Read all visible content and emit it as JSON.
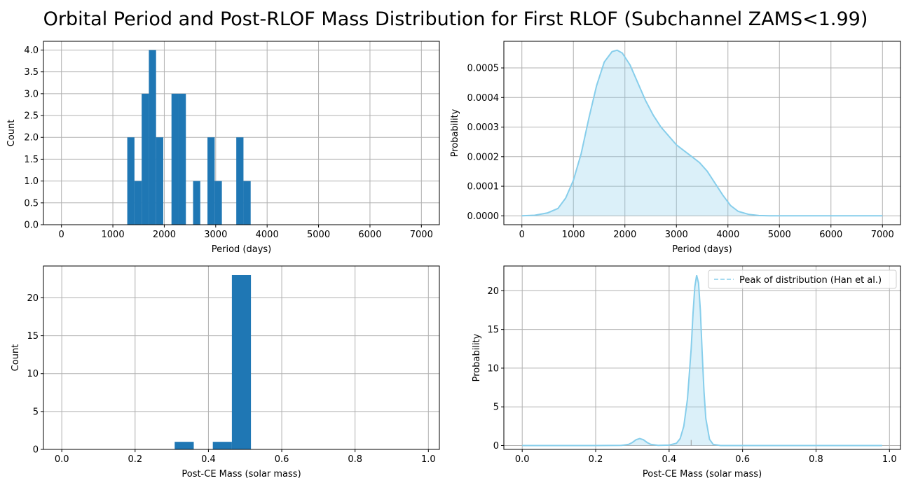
{
  "figure": {
    "title": "Orbital Period and Post-RLOF Mass Distribution for First RLOF (Subchannel ZAMS<1.99)"
  },
  "colors": {
    "bar": "#1f77b4",
    "kde_line": "#87ceeb",
    "kde_fill": "#87ceeb",
    "grid": "#b0b0b0"
  },
  "chart_data": [
    {
      "type": "bar",
      "panel": "top-left",
      "xlabel": "Period (days)",
      "ylabel": "Count",
      "xlim": [
        -350,
        7350
      ],
      "ylim": [
        0,
        4.2
      ],
      "grid": true,
      "xticks": [
        0,
        1000,
        2000,
        3000,
        4000,
        5000,
        6000,
        7000
      ],
      "xtick_labels": [
        "0",
        "1000",
        "2000",
        "3000",
        "4000",
        "5000",
        "6000",
        "7000"
      ],
      "yticks": [
        0,
        0.5,
        1,
        1.5,
        2,
        2.5,
        3,
        3.5,
        4
      ],
      "ytick_labels": [
        "0.0",
        "0.5",
        "1.0",
        "1.5",
        "2.0",
        "2.5",
        "3.0",
        "3.5",
        "4.0"
      ],
      "bins": [
        {
          "x0": 1280,
          "x1": 1420,
          "value": 2
        },
        {
          "x0": 1420,
          "x1": 1560,
          "value": 1
        },
        {
          "x0": 1560,
          "x1": 1700,
          "value": 3
        },
        {
          "x0": 1700,
          "x1": 1840,
          "value": 4
        },
        {
          "x0": 1840,
          "x1": 1980,
          "value": 2
        },
        {
          "x0": 2140,
          "x1": 2280,
          "value": 3
        },
        {
          "x0": 2280,
          "x1": 2420,
          "value": 3
        },
        {
          "x0": 2560,
          "x1": 2700,
          "value": 1
        },
        {
          "x0": 2840,
          "x1": 2980,
          "value": 2
        },
        {
          "x0": 2980,
          "x1": 3120,
          "value": 1
        },
        {
          "x0": 3400,
          "x1": 3540,
          "value": 2
        },
        {
          "x0": 3540,
          "x1": 3680,
          "value": 1
        }
      ]
    },
    {
      "type": "area",
      "panel": "top-right",
      "xlabel": "Period (days)",
      "ylabel": "Probability",
      "xlim": [
        -350,
        7350
      ],
      "ylim": [
        -3e-05,
        0.00059
      ],
      "grid": true,
      "xticks": [
        0,
        1000,
        2000,
        3000,
        4000,
        5000,
        6000,
        7000
      ],
      "xtick_labels": [
        "0",
        "1000",
        "2000",
        "3000",
        "4000",
        "5000",
        "6000",
        "7000"
      ],
      "yticks": [
        0,
        0.0001,
        0.0002,
        0.0003,
        0.0004,
        0.0005
      ],
      "ytick_labels": [
        "0.0000",
        "0.0001",
        "0.0002",
        "0.0003",
        "0.0004",
        "0.0005"
      ],
      "x": [
        0,
        250,
        500,
        700,
        850,
        1000,
        1150,
        1300,
        1450,
        1600,
        1750,
        1850,
        1950,
        2100,
        2250,
        2400,
        2550,
        2700,
        2850,
        3000,
        3150,
        3300,
        3450,
        3600,
        3750,
        3900,
        4050,
        4200,
        4400,
        4600,
        4800,
        5000,
        5500,
        6000,
        6500,
        7000
      ],
      "y": [
        0.0,
        2e-06,
        1e-05,
        2.5e-05,
        6e-05,
        0.00012,
        0.00021,
        0.00033,
        0.00044,
        0.00052,
        0.000555,
        0.00056,
        0.00055,
        0.00051,
        0.00045,
        0.00039,
        0.00034,
        0.0003,
        0.00027,
        0.00024,
        0.00022,
        0.0002,
        0.00018,
        0.00015,
        0.00011,
        7e-05,
        3.5e-05,
        1.5e-05,
        5e-06,
        1e-06,
        0.0,
        0.0,
        0.0,
        0.0,
        0.0,
        0.0
      ]
    },
    {
      "type": "bar",
      "panel": "bottom-left",
      "xlabel": "Post-CE Mass (solar mass)",
      "ylabel": "Count",
      "xlim": [
        -0.05,
        1.03
      ],
      "ylim": [
        0,
        24.2
      ],
      "grid": true,
      "xticks": [
        0,
        0.2,
        0.4,
        0.6,
        0.8,
        1.0
      ],
      "xtick_labels": [
        "0.0",
        "0.2",
        "0.4",
        "0.6",
        "0.8",
        "1.0"
      ],
      "yticks": [
        0,
        5,
        10,
        15,
        20
      ],
      "ytick_labels": [
        "0",
        "5",
        "10",
        "15",
        "20"
      ],
      "bins": [
        {
          "x0": 0.308,
          "x1": 0.36,
          "value": 1
        },
        {
          "x0": 0.412,
          "x1": 0.464,
          "value": 1
        },
        {
          "x0": 0.464,
          "x1": 0.516,
          "value": 23
        }
      ]
    },
    {
      "type": "area",
      "panel": "bottom-right",
      "xlabel": "Post-CE Mass (solar mass)",
      "ylabel": "Probability",
      "xlim": [
        -0.05,
        1.03
      ],
      "ylim": [
        -0.5,
        23.2
      ],
      "grid": true,
      "xticks": [
        0,
        0.2,
        0.4,
        0.6,
        0.8,
        1.0
      ],
      "xtick_labels": [
        "0.0",
        "0.2",
        "0.4",
        "0.6",
        "0.8",
        "1.0"
      ],
      "yticks": [
        0,
        5,
        10,
        15,
        20
      ],
      "ytick_labels": [
        "0",
        "5",
        "10",
        "15",
        "20"
      ],
      "x": [
        0,
        0.1,
        0.2,
        0.27,
        0.29,
        0.3,
        0.31,
        0.32,
        0.33,
        0.34,
        0.35,
        0.37,
        0.4,
        0.42,
        0.43,
        0.44,
        0.45,
        0.46,
        0.465,
        0.47,
        0.475,
        0.48,
        0.485,
        0.49,
        0.495,
        0.5,
        0.51,
        0.52,
        0.54,
        0.6,
        0.8,
        0.98
      ],
      "y": [
        0,
        0,
        0,
        0.02,
        0.15,
        0.4,
        0.75,
        0.9,
        0.75,
        0.4,
        0.15,
        0.02,
        0.05,
        0.3,
        0.9,
        2.5,
        6.0,
        12.5,
        17.0,
        20.5,
        22.0,
        21.0,
        17.5,
        12.0,
        7.0,
        3.5,
        0.8,
        0.15,
        0.0,
        0,
        0,
        0
      ],
      "legend": {
        "label": "Peak of distribution (Han et al.)",
        "position": "top-right",
        "style": "dashed"
      },
      "peak_marker_x": 0.46
    }
  ]
}
